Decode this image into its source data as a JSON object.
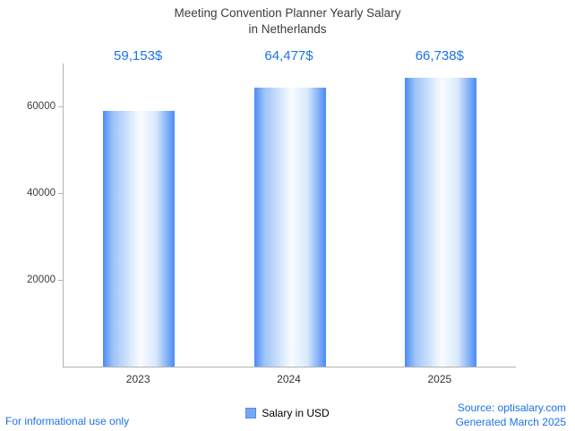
{
  "title": {
    "lines": [
      "Meeting Convention Planner Yearly Salary",
      "in Netherlands"
    ]
  },
  "chart_data": {
    "type": "bar",
    "title": "Meeting Convention Planner Yearly Salary in Netherlands",
    "categories": [
      "2023",
      "2024",
      "2025"
    ],
    "series": [
      {
        "name": "Salary in USD",
        "values": [
          59153,
          64477,
          66738
        ]
      }
    ],
    "value_labels": [
      "59,153$",
      "64,477$",
      "66,738$"
    ],
    "xlabel": "",
    "ylabel": "",
    "ylim": [
      0,
      70000
    ],
    "yticks": [
      20000,
      40000,
      60000
    ],
    "grid": false,
    "legend_position": "bottom",
    "bar_gradient": [
      "#4a8bf5",
      "#f8fbff",
      "#4a8bf5"
    ],
    "value_label_color": "#1a73e8"
  },
  "legend": {
    "label": "Salary in USD",
    "swatch_color": "#7aa7f0"
  },
  "footer": {
    "left": "For informational use only",
    "source_line1": "Source: optisalary.com",
    "source_line2": "Generated March 2025"
  },
  "colors": {
    "accent": "#1a73e8",
    "axis": "#b3b3b3",
    "title_text": "#3d3d3d"
  }
}
